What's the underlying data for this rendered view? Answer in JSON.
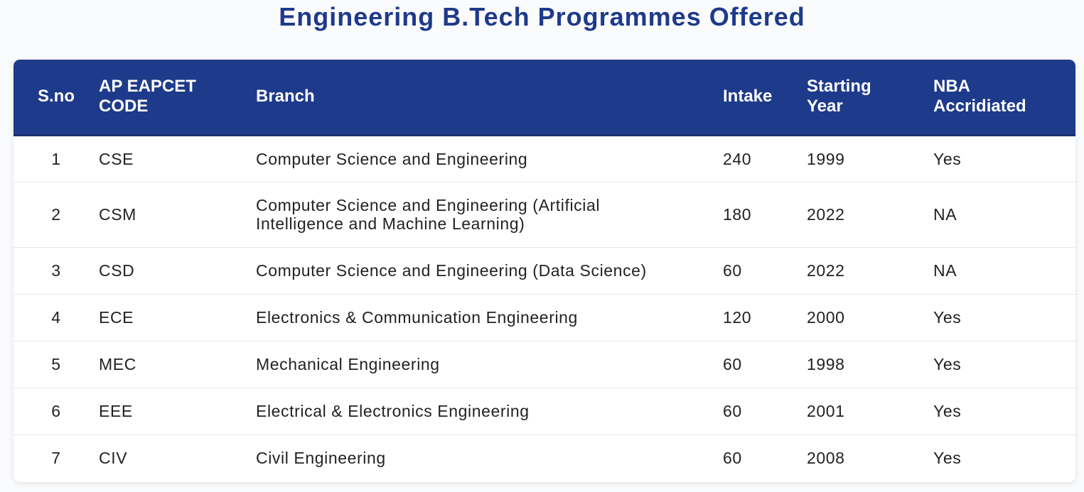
{
  "page": {
    "title": "Engineering B.Tech Programmes Offered"
  },
  "table": {
    "headers": {
      "sno": "S.no",
      "code": "AP EAPCET CODE",
      "branch": "Branch",
      "intake": "Intake",
      "year": "Starting Year",
      "nba": "NBA Accridiated"
    },
    "rows": [
      {
        "sno": "1",
        "code": "CSE",
        "branch": "Computer Science and Engineering",
        "intake": "240",
        "year": "1999",
        "nba": "Yes"
      },
      {
        "sno": "2",
        "code": "CSM",
        "branch": "Computer Science and Engineering (Artificial Intelligence and Machine Learning)",
        "intake": "180",
        "year": "2022",
        "nba": "NA"
      },
      {
        "sno": "3",
        "code": "CSD",
        "branch": "Computer Science and Engineering (Data Science)",
        "intake": "60",
        "year": "2022",
        "nba": "NA"
      },
      {
        "sno": "4",
        "code": "ECE",
        "branch": "Electronics & Communication Engineering",
        "intake": "120",
        "year": "2000",
        "nba": "Yes"
      },
      {
        "sno": "5",
        "code": "MEC",
        "branch": "Mechanical Engineering",
        "intake": "60",
        "year": "1998",
        "nba": "Yes"
      },
      {
        "sno": "6",
        "code": "EEE",
        "branch": "Electrical & Electronics Engineering",
        "intake": "60",
        "year": "2001",
        "nba": "Yes"
      },
      {
        "sno": "7",
        "code": "CIV",
        "branch": "Civil Engineering",
        "intake": "60",
        "year": "2008",
        "nba": "Yes"
      }
    ]
  },
  "colors": {
    "accent": "#1e3a8a",
    "header_text": "#ffffff",
    "body_text": "#222222"
  }
}
